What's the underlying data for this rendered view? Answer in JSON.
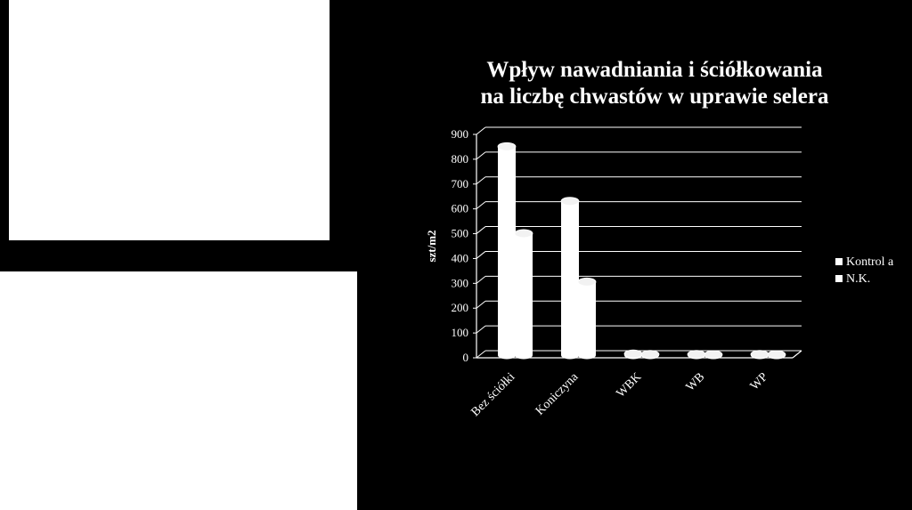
{
  "chart_data": {
    "type": "bar",
    "title_lines": [
      "Wpływ nawadniania i ściółkowania",
      "na liczbę chwastów w uprawie selera"
    ],
    "ylabel": "szt/m2",
    "xlabel": "",
    "categories": [
      "Bez ściółki",
      "Koniczyna",
      "WBK",
      "WB",
      "WP"
    ],
    "series": [
      {
        "name": "Kontrol a",
        "values": [
          840,
          620,
          5,
          3,
          3
        ]
      },
      {
        "name": "N.K.",
        "values": [
          490,
          295,
          3,
          2,
          2
        ]
      }
    ],
    "ylim": [
      0,
      900
    ],
    "yticks": [
      0,
      100,
      200,
      300,
      400,
      500,
      600,
      700,
      800,
      900
    ],
    "grid": true,
    "legend_position": "right",
    "colors": {
      "background": "#000000",
      "bars": "#ffffff",
      "text": "#ffffff",
      "panels": "#ffffff"
    }
  }
}
